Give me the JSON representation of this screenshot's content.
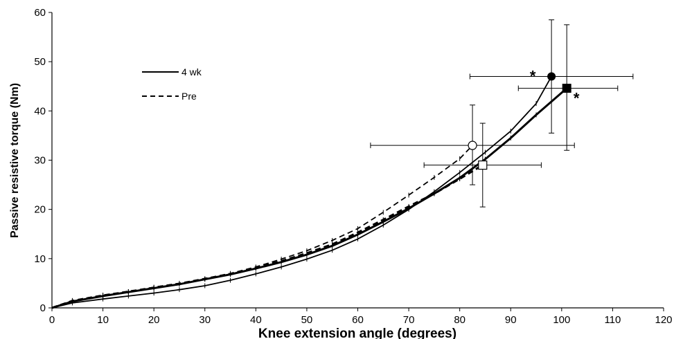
{
  "chart_data": {
    "type": "line",
    "xlabel": "Knee extension angle (degrees)",
    "ylabel": "Passive resistive torque (Nm)",
    "xlim": [
      0,
      120
    ],
    "ylim": [
      0,
      60
    ],
    "x_ticks": [
      "0",
      "10",
      "20",
      "30",
      "40",
      "50",
      "60",
      "70",
      "80",
      "90",
      "100",
      "110",
      "120"
    ],
    "y_ticks": [
      "0",
      "10",
      "20",
      "30",
      "40",
      "50",
      "60"
    ],
    "grid": false,
    "legend": {
      "placement": "top-left",
      "entries": [
        {
          "label": "4 wk",
          "style": "solid"
        },
        {
          "label": "Pre",
          "style": "dashed"
        }
      ]
    },
    "series": [
      {
        "name": "4 wk",
        "group": "left",
        "style": "solid",
        "x": [
          0,
          4,
          10,
          15,
          20,
          25,
          30,
          35,
          40,
          45,
          50,
          55,
          60,
          65,
          70,
          75,
          80,
          85,
          90,
          95,
          98
        ],
        "y": [
          0,
          1,
          1.8,
          2.4,
          3.0,
          3.7,
          4.5,
          5.6,
          6.9,
          8.3,
          9.9,
          11.7,
          14.0,
          16.8,
          20.0,
          23.6,
          27.5,
          31.6,
          35.9,
          41.5,
          47.0
        ]
      },
      {
        "name": "Pre",
        "group": "left",
        "style": "dashed",
        "x": [
          0,
          4,
          10,
          15,
          20,
          25,
          30,
          35,
          40,
          45,
          50,
          55,
          60,
          65,
          70,
          75,
          80,
          82.5
        ],
        "y": [
          0,
          1.5,
          2.6,
          3.3,
          4.2,
          5.0,
          5.9,
          7.0,
          8.3,
          9.9,
          11.6,
          13.7,
          16.1,
          19.4,
          22.9,
          26.5,
          30.3,
          33.0
        ]
      },
      {
        "name": "4 wk",
        "group": "right",
        "style": "solid",
        "x": [
          0,
          4,
          10,
          15,
          20,
          25,
          30,
          35,
          40,
          45,
          50,
          55,
          60,
          65,
          70,
          75,
          80,
          85,
          90,
          95,
          101
        ],
        "y": [
          0,
          1.3,
          2.4,
          3.2,
          4.0,
          4.8,
          5.8,
          6.8,
          8.0,
          9.3,
          10.8,
          12.6,
          14.9,
          17.5,
          20.2,
          23.2,
          26.4,
          30.2,
          34.5,
          39.2,
          44.6
        ]
      },
      {
        "name": "Pre",
        "group": "right",
        "style": "dashed",
        "x": [
          0,
          4,
          10,
          15,
          20,
          25,
          30,
          35,
          40,
          45,
          50,
          55,
          60,
          65,
          70,
          75,
          80,
          84.5
        ],
        "y": [
          0,
          1.4,
          2.5,
          3.3,
          4.1,
          4.9,
          5.9,
          6.9,
          8.1,
          9.5,
          11.1,
          12.9,
          15.3,
          17.9,
          20.6,
          23.2,
          26.2,
          29.0
        ]
      }
    ],
    "endpoints": [
      {
        "marker": "filled-circle",
        "x": 98,
        "y": 47,
        "x_err": [
          82,
          114
        ],
        "y_err": [
          35.5,
          58.5
        ],
        "annotation": "*"
      },
      {
        "marker": "filled-square",
        "x": 101,
        "y": 44.6,
        "x_err": [
          91.5,
          111
        ],
        "y_err": [
          32,
          57.5
        ],
        "annotation": "*"
      },
      {
        "marker": "open-circle",
        "x": 82.5,
        "y": 33,
        "x_err": [
          62.5,
          102.5
        ],
        "y_err": [
          25,
          41.2
        ]
      },
      {
        "marker": "open-square",
        "x": 84.5,
        "y": 29,
        "x_err": [
          73,
          96
        ],
        "y_err": [
          20.5,
          37.5
        ]
      }
    ]
  }
}
